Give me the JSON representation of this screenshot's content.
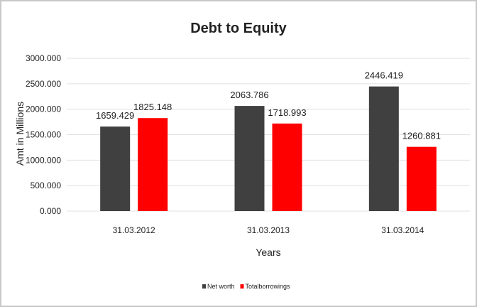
{
  "chart_data": {
    "type": "bar",
    "title": "Debt to Equity",
    "xlabel": "Years",
    "ylabel": "Amt in Millions",
    "categories": [
      "31.03.2012",
      "31.03.2013",
      "31.03.2014"
    ],
    "series": [
      {
        "name": "Net worth",
        "color": "#404040",
        "values": [
          1659.429,
          2063.786,
          2446.419
        ]
      },
      {
        "name": "Total borrowings",
        "color": "#ff0000",
        "values": [
          1825.148,
          1718.993,
          1260.881
        ]
      }
    ],
    "data_labels": [
      [
        "1659.429",
        "2063.786",
        "2446.419"
      ],
      [
        "1825.148",
        "1718.993",
        "1260.881"
      ]
    ],
    "ylim": [
      0,
      3000
    ],
    "yticks": [
      0,
      500,
      1000,
      1500,
      2000,
      2500,
      3000
    ],
    "ytick_labels": [
      "0.000",
      "500.000",
      "1000.000",
      "1500.000",
      "2000.000",
      "2500.000",
      "3000.000"
    ],
    "grid": true,
    "legend_position": "bottom",
    "legend_labels": [
      "Net worth",
      "Totalborrowings"
    ]
  }
}
